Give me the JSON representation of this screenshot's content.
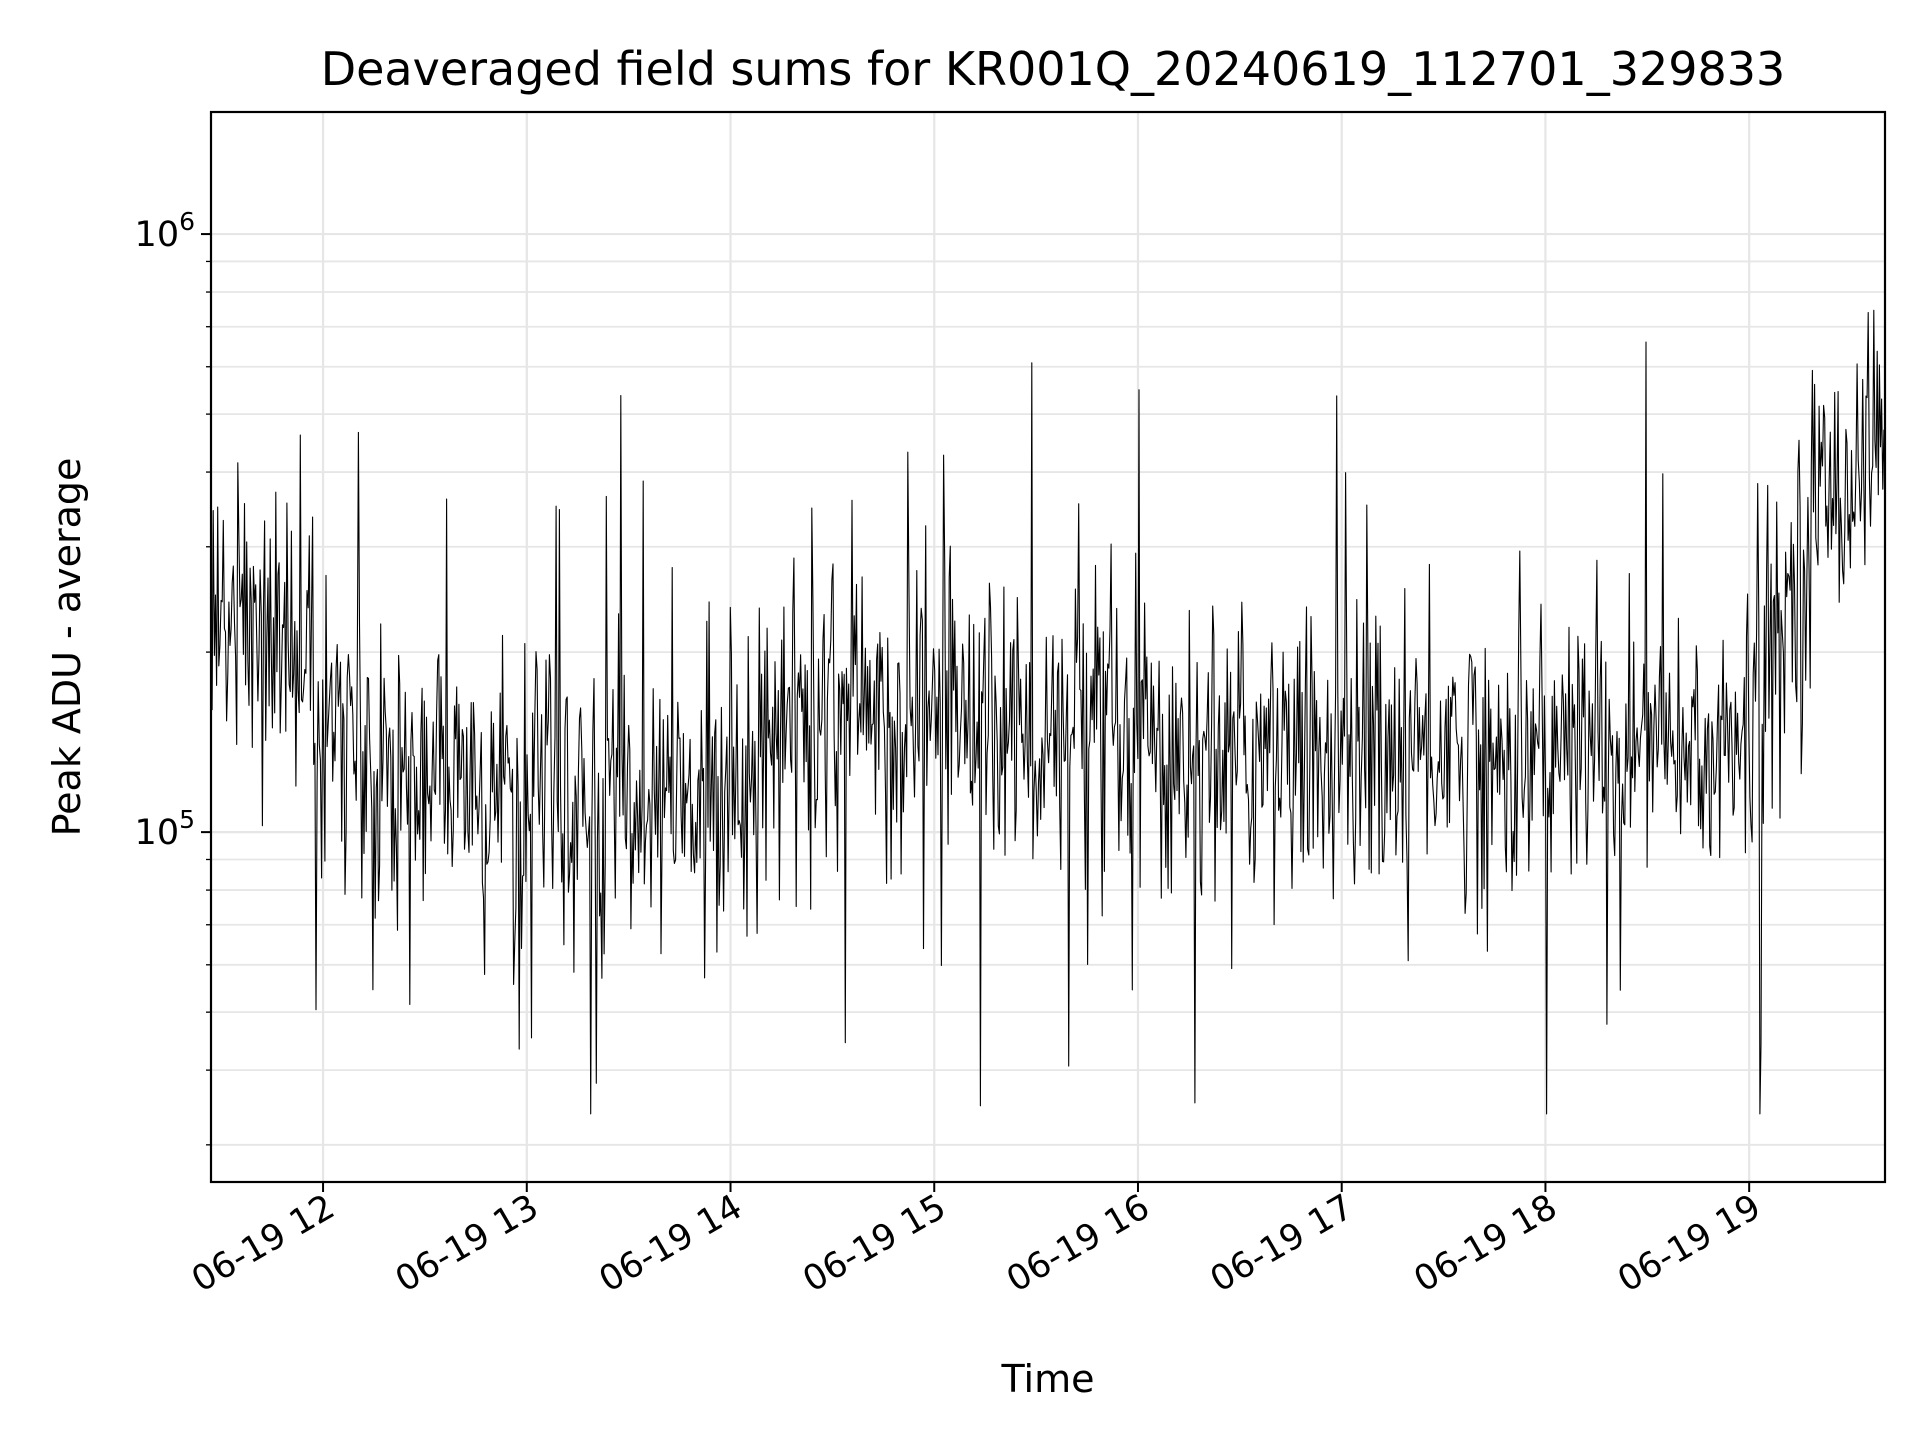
{
  "chart_data": {
    "type": "line",
    "title": "Deaveraged field sums for KR001Q_20240619_112701_329833",
    "xlabel": "Time",
    "ylabel": "Peak ADU - average",
    "x_start": "06-19 11:27:01",
    "x_range": [
      "06-19 11:27",
      "06-19 19:40"
    ],
    "ylim": [
      26000,
      1600000
    ],
    "y_scale": "log",
    "grid": true,
    "line_color": "#000000",
    "x_ticks": [
      {
        "value": "06-19 12:00",
        "label": "06-19 12"
      },
      {
        "value": "06-19 13:00",
        "label": "06-19 13"
      },
      {
        "value": "06-19 14:00",
        "label": "06-19 14"
      },
      {
        "value": "06-19 15:00",
        "label": "06-19 15"
      },
      {
        "value": "06-19 16:00",
        "label": "06-19 16"
      },
      {
        "value": "06-19 17:00",
        "label": "06-19 17"
      },
      {
        "value": "06-19 18:00",
        "label": "06-19 18"
      },
      {
        "value": "06-19 19:00",
        "label": "06-19 19"
      }
    ],
    "y_ticks": [
      {
        "value": 100000,
        "base": "10",
        "exp": "5"
      },
      {
        "value": 1000000,
        "base": "10",
        "exp": "6"
      }
    ],
    "series": [
      {
        "x": [
          "06-19 11:27",
          "06-19 11:40",
          "06-19 11:50",
          "06-19 12:00",
          "06-19 12:15",
          "06-19 12:30",
          "06-19 12:45",
          "06-19 13:00",
          "06-19 13:15",
          "06-19 13:30",
          "06-19 13:45",
          "06-19 14:00",
          "06-19 14:15",
          "06-19 14:30",
          "06-19 14:45",
          "06-19 15:00",
          "06-19 15:15",
          "06-19 15:30",
          "06-19 15:45",
          "06-19 16:00",
          "06-19 16:15",
          "06-19 16:30",
          "06-19 16:45",
          "06-19 17:00",
          "06-19 17:15",
          "06-19 17:30",
          "06-19 17:45",
          "06-19 18:00",
          "06-19 18:15",
          "06-19 18:30",
          "06-19 18:45",
          "06-19 19:00",
          "06-19 19:10",
          "06-19 19:20",
          "06-19 19:30",
          "06-19 19:40"
        ],
        "values": [
          220000,
          230000,
          200000,
          150000,
          130000,
          125000,
          115000,
          115000,
          110000,
          110000,
          110000,
          125000,
          150000,
          160000,
          155000,
          165000,
          160000,
          140000,
          140000,
          135000,
          135000,
          140000,
          135000,
          135000,
          140000,
          140000,
          135000,
          135000,
          140000,
          140000,
          135000,
          140000,
          230000,
          350000,
          420000,
          460000
        ]
      }
    ]
  }
}
